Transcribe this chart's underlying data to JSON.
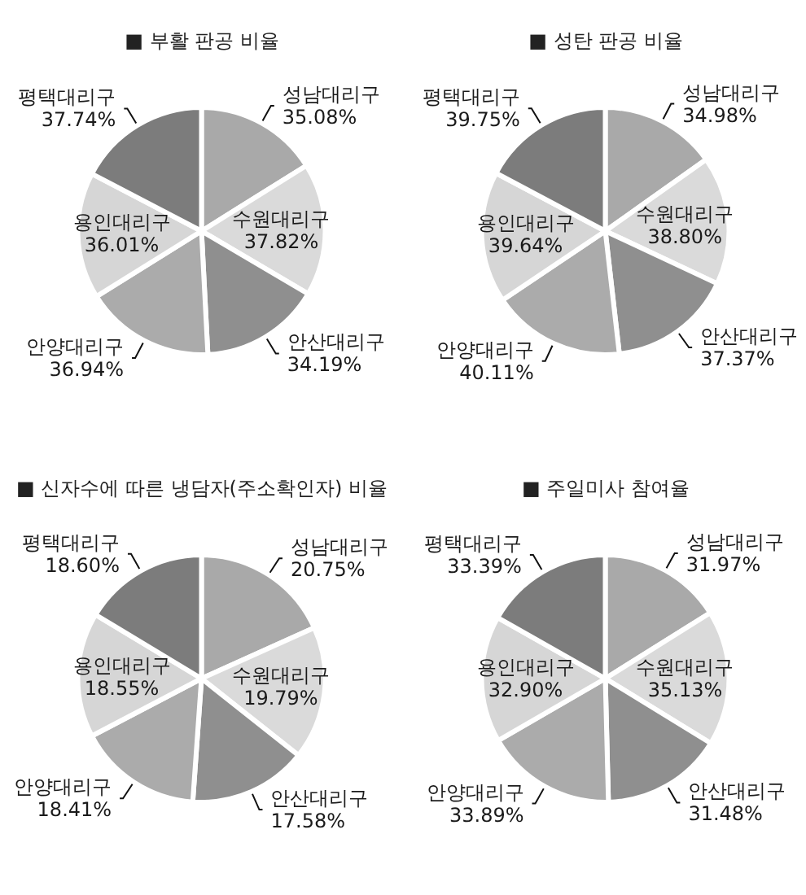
{
  "chart_data": [
    {
      "type": "pie",
      "title": "■ 부활 판공 비율",
      "categories": [
        "성남대리구",
        "수원대리구",
        "안산대리구",
        "안양대리구",
        "용인대리구",
        "평택대리구"
      ],
      "values": [
        35.08,
        37.82,
        34.19,
        36.94,
        36.01,
        37.74
      ],
      "value_labels": [
        "35.08%",
        "37.82%",
        "34.19%",
        "36.94%",
        "36.01%",
        "37.74%"
      ],
      "colors": [
        "#a9a9a9",
        "#dadada",
        "#8f8f8f",
        "#ababab",
        "#d6d6d6",
        "#7c7c7c"
      ]
    },
    {
      "type": "pie",
      "title": "■ 성탄 판공 비율",
      "categories": [
        "성남대리구",
        "수원대리구",
        "안산대리구",
        "안양대리구",
        "용인대리구",
        "평택대리구"
      ],
      "values": [
        34.98,
        38.8,
        37.37,
        40.11,
        39.64,
        39.75
      ],
      "value_labels": [
        "34.98%",
        "38.80%",
        "37.37%",
        "40.11%",
        "39.64%",
        "39.75%"
      ],
      "colors": [
        "#a9a9a9",
        "#dadada",
        "#8f8f8f",
        "#ababab",
        "#d6d6d6",
        "#7c7c7c"
      ]
    },
    {
      "type": "pie",
      "title": "■ 신자수에 따른 냉담자(주소확인자) 비율",
      "categories": [
        "성남대리구",
        "수원대리구",
        "안산대리구",
        "안양대리구",
        "용인대리구",
        "평택대리구"
      ],
      "values": [
        20.75,
        19.79,
        17.58,
        18.41,
        18.55,
        18.6
      ],
      "value_labels": [
        "20.75%",
        "19.79%",
        "17.58%",
        "18.41%",
        "18.55%",
        "18.60%"
      ],
      "colors": [
        "#a9a9a9",
        "#dadada",
        "#8f8f8f",
        "#ababab",
        "#d6d6d6",
        "#7c7c7c"
      ]
    },
    {
      "type": "pie",
      "title": "■ 주일미사 참여율",
      "categories": [
        "성남대리구",
        "수원대리구",
        "안산대리구",
        "안양대리구",
        "용인대리구",
        "평택대리구"
      ],
      "values": [
        31.97,
        35.13,
        31.48,
        33.89,
        32.9,
        33.39
      ],
      "value_labels": [
        "31.97%",
        "35.13%",
        "31.48%",
        "33.89%",
        "32.90%",
        "33.39%"
      ],
      "colors": [
        "#a9a9a9",
        "#dadada",
        "#8f8f8f",
        "#ababab",
        "#d6d6d6",
        "#7c7c7c"
      ]
    }
  ]
}
